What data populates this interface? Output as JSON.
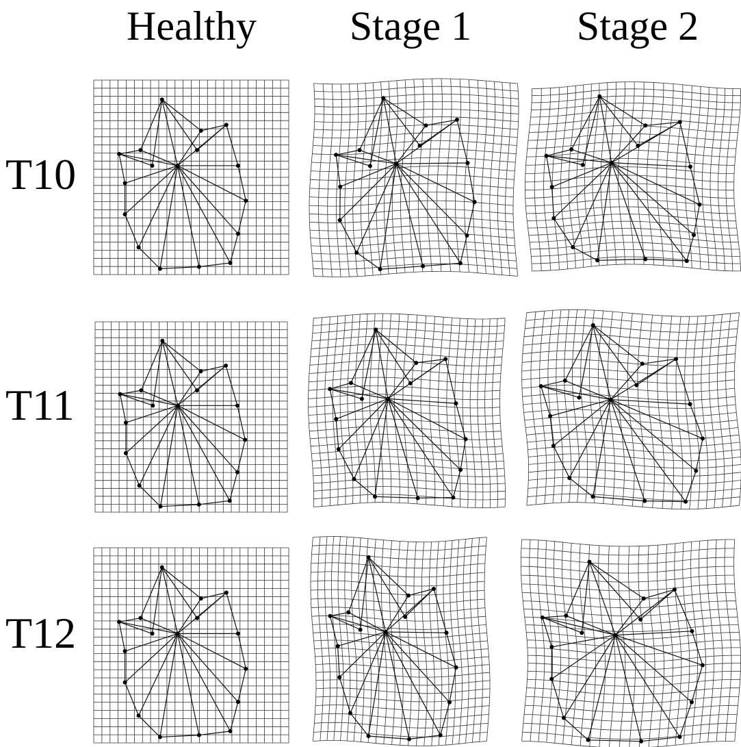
{
  "columns": {
    "healthy": "Healthy",
    "stage1": "Stage 1",
    "stage2": "Stage 2"
  },
  "rows": {
    "t10": "T10",
    "t11": "T11",
    "t12": "T12"
  },
  "colors": {
    "grid": "#333333",
    "lines": "#111111",
    "points": "#000000",
    "background": "#ffffff"
  }
}
